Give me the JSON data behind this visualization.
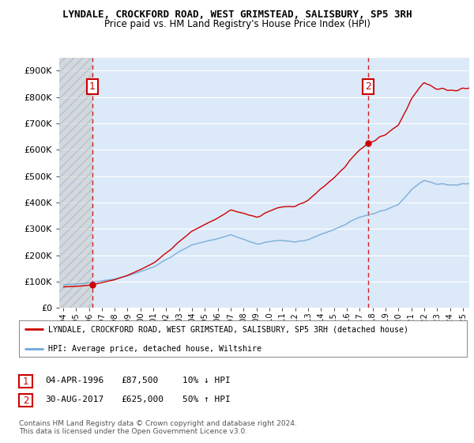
{
  "title": "LYNDALE, CROCKFORD ROAD, WEST GRIMSTEAD, SALISBURY, SP5 3RH",
  "subtitle": "Price paid vs. HM Land Registry's House Price Index (HPI)",
  "ylim": [
    0,
    950000
  ],
  "yticks": [
    0,
    100000,
    200000,
    300000,
    400000,
    500000,
    600000,
    700000,
    800000,
    900000
  ],
  "ytick_labels": [
    "£0",
    "£100K",
    "£200K",
    "£300K",
    "£400K",
    "£500K",
    "£600K",
    "£700K",
    "£800K",
    "£900K"
  ],
  "background_color": "#ffffff",
  "plot_bg_color": "#dce9f8",
  "grid_color": "#ffffff",
  "sale1_year": 1996.25,
  "sale1_price": 87500,
  "sale2_year": 2017.67,
  "sale2_price": 625000,
  "hpi_label": "HPI: Average price, detached house, Wiltshire",
  "property_label": "LYNDALE, CROCKFORD ROAD, WEST GRIMSTEAD, SALISBURY, SP5 3RH (detached house)",
  "copyright": "Contains HM Land Registry data © Crown copyright and database right 2024.\nThis data is licensed under the Open Government Licence v3.0.",
  "hpi_color": "#6fa8d8",
  "property_color": "#cc0000",
  "annotation_box_color": "#cc0000",
  "dashed_line_color": "#cc0000",
  "xlim_left": 1993.7,
  "xlim_right": 2025.5
}
